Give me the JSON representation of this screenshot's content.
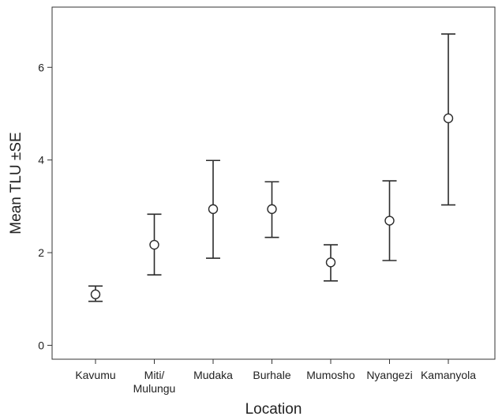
{
  "chart_data": {
    "type": "errorbar",
    "title": "",
    "xlabel": "Location",
    "ylabel": "Mean TLU ±SE",
    "ylim": [
      -0.3,
      7.3
    ],
    "yticks": [
      0,
      2,
      4,
      6
    ],
    "grid": false,
    "legend": "none",
    "categories": [
      [
        "Kavumu"
      ],
      [
        "Miti/",
        "Mulungu"
      ],
      [
        "Mudaka"
      ],
      [
        "Burhale"
      ],
      [
        "Mumosho"
      ],
      [
        "Nyangezi"
      ],
      [
        "Kamanyola"
      ]
    ],
    "mean": [
      1.1,
      2.17,
      2.94,
      2.94,
      1.79,
      2.69,
      4.9
    ],
    "lower": [
      0.95,
      1.52,
      1.88,
      2.33,
      1.39,
      1.83,
      3.03
    ],
    "upper": [
      1.28,
      2.83,
      3.99,
      3.53,
      2.17,
      3.55,
      6.72
    ],
    "marker": "open-circle",
    "colors": {
      "marks": "#2b2b2b",
      "axes": "#333333"
    }
  }
}
